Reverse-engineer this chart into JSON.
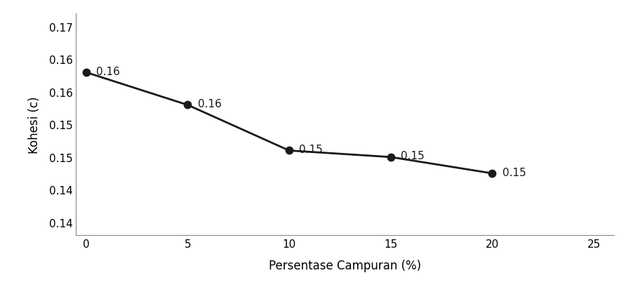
{
  "x": [
    0,
    5,
    10,
    15,
    20
  ],
  "y": [
    0.163,
    0.158,
    0.151,
    0.15,
    0.1475
  ],
  "labels": [
    "0.16",
    "0.16",
    "0.15",
    "0.15",
    "0.15"
  ],
  "xlabel": "Persentase Campuran (%)",
  "ylabel": "Kohesi (c)",
  "xlim": [
    -0.5,
    26
  ],
  "ylim": [
    0.138,
    0.172
  ],
  "xticks": [
    0,
    5,
    10,
    15,
    20,
    25
  ],
  "yticks": [
    0.14,
    0.145,
    0.15,
    0.155,
    0.16,
    0.165,
    0.17
  ],
  "ytick_labels": [
    "0.14",
    "0.14",
    "0.15",
    "0.15",
    "0.16",
    "0.16",
    "0.17"
  ],
  "line_color": "#1a1a1a",
  "marker_color": "#1a1a1a",
  "background_color": "#ffffff",
  "label_fontsize": 11,
  "axis_label_fontsize": 12,
  "tick_fontsize": 11
}
